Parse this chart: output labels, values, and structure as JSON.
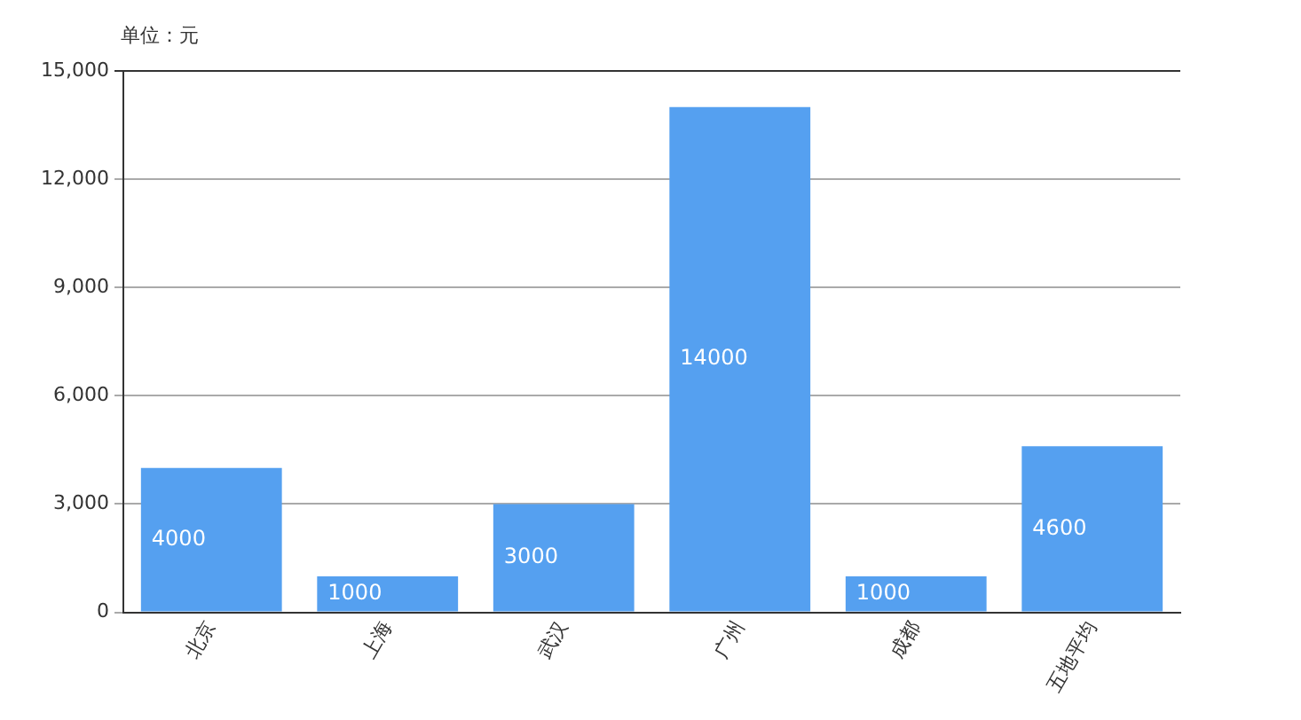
{
  "chart_data": {
    "type": "bar",
    "ylabel": "单位：元",
    "categories": [
      "北京",
      "上海",
      "武汉",
      "广州",
      "成都",
      "五地平均"
    ],
    "values": [
      4000,
      1000,
      3000,
      14000,
      1000,
      4600
    ],
    "color": "#55a0f0",
    "ylim": [
      0,
      15000
    ],
    "yticks": [
      {
        "value": 0,
        "label": "0"
      },
      {
        "value": 3000,
        "label": "3,000"
      },
      {
        "value": 6000,
        "label": "6,000"
      },
      {
        "value": 9000,
        "label": "9,000"
      },
      {
        "value": 12000,
        "label": "12,000"
      },
      {
        "value": 15000,
        "label": "15,000"
      }
    ],
    "grid": "y",
    "data_labels": true,
    "legend": false
  }
}
